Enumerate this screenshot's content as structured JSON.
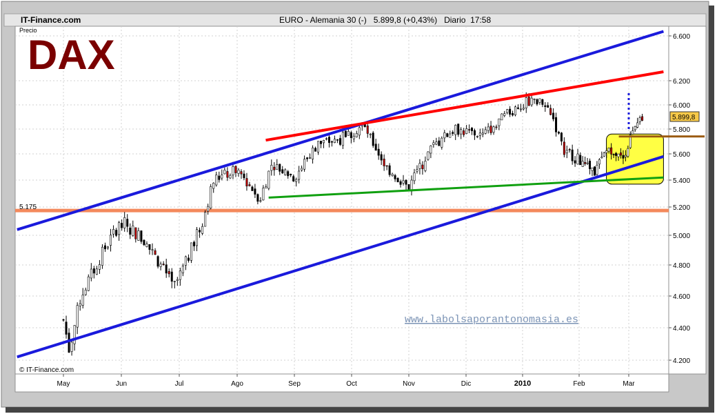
{
  "header": {
    "source": "IT-Finance.com",
    "instrument_title": "EURO - Alemania 30 (-)   5.899,8 (+0,43%)   Diario  17:58"
  },
  "big_title": "DAX",
  "price_label": "Precio",
  "copyright": "© IT-Finance.com",
  "watermark": "www.labolsaporantonomasia.es",
  "last_price_tag": "5.899,8",
  "level_label": "5.175",
  "colors": {
    "title": "#7a0000",
    "channel": "#1a1adc",
    "resistance": "#ff0000",
    "support": "#10a010",
    "horizontal": "#f4895c",
    "box_fill": "#ffff44",
    "box_line": "#9a5a10",
    "candle": "#000000",
    "watermark": "#7b93b5"
  },
  "chart_data": {
    "type": "candlestick",
    "y_ticks": [
      "4.200",
      "4.400",
      "4.600",
      "4.800",
      "5.000",
      "5.200",
      "5.400",
      "5.600",
      "5.800",
      "6.000",
      "6.200",
      "6.600"
    ],
    "ylim": [
      4150,
      6700
    ],
    "x_ticks": [
      "May",
      "Jun",
      "Jul",
      "Ago",
      "Sep",
      "Oct",
      "Nov",
      "Dic",
      "2010",
      "Feb",
      "Mar"
    ],
    "grid": true,
    "approx_close_path": [
      {
        "month": 0.0,
        "value": 4450
      },
      {
        "month": 0.1,
        "value": 4260
      },
      {
        "month": 0.3,
        "value": 4600
      },
      {
        "month": 0.7,
        "value": 4900
      },
      {
        "month": 1.0,
        "value": 5100
      },
      {
        "month": 1.3,
        "value": 5000
      },
      {
        "month": 1.6,
        "value": 4850
      },
      {
        "month": 1.9,
        "value": 4650
      },
      {
        "month": 2.1,
        "value": 4800
      },
      {
        "month": 2.4,
        "value": 5100
      },
      {
        "month": 2.6,
        "value": 5400
      },
      {
        "month": 3.0,
        "value": 5480
      },
      {
        "month": 3.4,
        "value": 5260
      },
      {
        "month": 3.6,
        "value": 5520
      },
      {
        "month": 4.0,
        "value": 5420
      },
      {
        "month": 4.4,
        "value": 5680
      },
      {
        "month": 4.8,
        "value": 5720
      },
      {
        "month": 5.2,
        "value": 5830
      },
      {
        "month": 5.6,
        "value": 5500
      },
      {
        "month": 6.0,
        "value": 5350
      },
      {
        "month": 6.4,
        "value": 5650
      },
      {
        "month": 6.8,
        "value": 5800
      },
      {
        "month": 7.3,
        "value": 5750
      },
      {
        "month": 7.8,
        "value": 5950
      },
      {
        "month": 8.2,
        "value": 6050
      },
      {
        "month": 8.5,
        "value": 5950
      },
      {
        "month": 8.7,
        "value": 5650
      },
      {
        "month": 9.0,
        "value": 5550
      },
      {
        "month": 9.3,
        "value": 5450
      },
      {
        "month": 9.6,
        "value": 5650
      },
      {
        "month": 9.9,
        "value": 5600
      },
      {
        "month": 10.1,
        "value": 5780
      },
      {
        "month": 10.3,
        "value": 5900
      }
    ],
    "horizontal_level": 5175,
    "trendlines": [
      {
        "kind": "channel-upper",
        "from": {
          "month": -0.8,
          "value": 5040
        },
        "to": {
          "month": 10.7,
          "value": 6640
        }
      },
      {
        "kind": "channel-lower",
        "from": {
          "month": -0.8,
          "value": 4220
        },
        "to": {
          "month": 10.7,
          "value": 5580
        }
      },
      {
        "kind": "resistance",
        "from": {
          "month": 3.5,
          "value": 5710
        },
        "to": {
          "month": 10.7,
          "value": 6280
        }
      },
      {
        "kind": "support",
        "from": {
          "month": 3.55,
          "value": 5270
        },
        "to": {
          "month": 10.7,
          "value": 5420
        }
      }
    ],
    "box": {
      "month_from": 9.55,
      "month_to": 10.7,
      "value_from": 5370,
      "value_to": 5760
    },
    "box_line_value": 5740,
    "dotted_target": {
      "month": 10.0,
      "value_from": 5800,
      "value_to": 6100
    }
  }
}
